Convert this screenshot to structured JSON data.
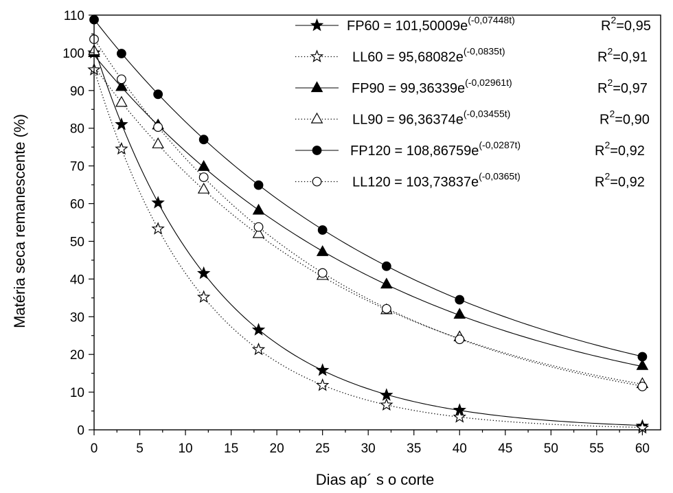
{
  "chart_data": {
    "type": "scatter",
    "xlabel": "Dias ap´ s o corte",
    "ylabel": "Matéria seca remanescente (%)",
    "xlim": [
      0,
      62
    ],
    "ylim": [
      0,
      110
    ],
    "xticks": [
      "0",
      "5",
      "10",
      "15",
      "20",
      "25",
      "30",
      "35",
      "40",
      "45",
      "50",
      "55",
      "60"
    ],
    "yticks": [
      "0",
      "10",
      "20",
      "30",
      "40",
      "50",
      "60",
      "70",
      "80",
      "90",
      "100",
      "110"
    ],
    "grid": false,
    "legend_position": "top-right",
    "x": [
      0,
      3,
      7,
      12,
      18,
      25,
      32,
      40,
      60
    ],
    "series": [
      {
        "name": "FP60",
        "marker": "star-filled",
        "line": "solid",
        "values": [
          100,
          81,
          60.2,
          41.5,
          26.5,
          15.8,
          9.2,
          5.2,
          1.0
        ],
        "fit": {
          "a": 101.50009,
          "b": 0.07448
        },
        "eq_main": "FP60 = 101,50009e",
        "eq_exp": "(-0,07448t)",
        "r2_value": "=0,95"
      },
      {
        "name": "LL60",
        "marker": "star-open",
        "line": "dotted",
        "values": [
          95.5,
          74.5,
          53.3,
          35.2,
          21.3,
          11.8,
          6.6,
          3.4,
          0.5
        ],
        "fit": {
          "a": 95.68082,
          "b": 0.0835
        },
        "eq_main": "LL60 = 95,68082e",
        "eq_exp": "(-0,0835t)",
        "r2_value": "=0,91"
      },
      {
        "name": "FP90",
        "marker": "triangle-filled",
        "line": "solid",
        "values": [
          100,
          91,
          80.8,
          69.8,
          58.2,
          47.2,
          38.6,
          30.6,
          17.0
        ],
        "fit": {
          "a": 99.36339,
          "b": 0.02961
        },
        "eq_main": "FP90 = 99,36339e",
        "eq_exp": "(-0,02961t)",
        "r2_value": "=0,97"
      },
      {
        "name": "LL90",
        "marker": "triangle-open",
        "line": "dotted",
        "values": [
          100.5,
          86.8,
          75.8,
          63.8,
          52.0,
          40.9,
          31.8,
          24.6,
          12.2
        ],
        "fit": {
          "a": 96.36374,
          "b": 0.03455
        },
        "eq_main": "LL90 = 96,36374e",
        "eq_exp": "(-0,03455t)",
        "r2_value": "=0,90"
      },
      {
        "name": "FP120",
        "marker": "circle-filled",
        "line": "solid",
        "values": [
          108.8,
          99.8,
          89.0,
          77.0,
          64.9,
          53.0,
          43.4,
          34.5,
          19.4
        ],
        "fit": {
          "a": 108.86759,
          "b": 0.0287
        },
        "eq_main": "FP120 = 108,86759e",
        "eq_exp": "(-0,0287t)",
        "r2_value": "=0,92"
      },
      {
        "name": "LL120",
        "marker": "circle-open",
        "line": "dotted",
        "values": [
          103.6,
          93.0,
          80.3,
          67.0,
          53.8,
          41.6,
          32.1,
          24.0,
          11.5
        ],
        "fit": {
          "a": 103.73837,
          "b": 0.0365
        },
        "eq_main": "LL120 = 103,73837e",
        "eq_exp": "(-0,0365t)",
        "r2_value": "=0,92"
      }
    ]
  }
}
